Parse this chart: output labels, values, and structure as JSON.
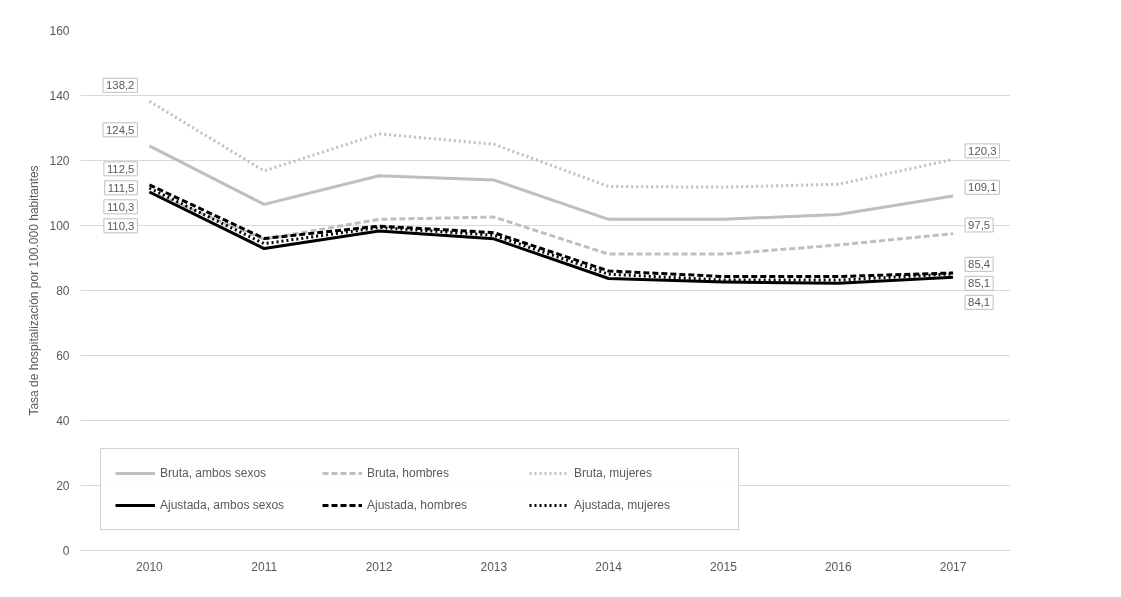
{
  "chart_data": {
    "type": "line",
    "ylabel": "Tasa de hospitalización por 100.000 habitantes",
    "categories": [
      "2010",
      "2011",
      "2012",
      "2013",
      "2014",
      "2015",
      "2016",
      "2017"
    ],
    "ylim": [
      0,
      160
    ],
    "yticks": [
      0,
      20,
      40,
      60,
      80,
      100,
      120,
      140,
      160
    ],
    "grid": "y",
    "legend": "bottom left",
    "series": [
      {
        "name": "Bruta, ambos sexos",
        "color": "#bfbfbf",
        "line_style": "solid",
        "values": [
          124.5,
          106.5,
          115.3,
          114,
          101.9,
          101.9,
          103.4,
          109.1
        ],
        "value_labels": [
          "124,5",
          null,
          null,
          null,
          null,
          null,
          null,
          "109,1"
        ]
      },
      {
        "name": "Bruta, hombres",
        "color": "#bfbfbf",
        "line_style": "dashed",
        "values": [
          110.3,
          95.8,
          101.9,
          102.6,
          91.2,
          91.2,
          94,
          97.5
        ],
        "value_labels": [
          "110,3",
          null,
          null,
          null,
          null,
          null,
          null,
          "97,5"
        ]
      },
      {
        "name": "Bruta, mujeres",
        "color": "#bfbfbf",
        "line_style": "dotted",
        "values": [
          138.2,
          116.8,
          128.2,
          125,
          112,
          111.8,
          112.7,
          120.3
        ],
        "value_labels": [
          "138,2",
          null,
          null,
          null,
          null,
          null,
          null,
          "120,3"
        ]
      },
      {
        "name": "Ajustada, ambos sexos",
        "color": "#000000",
        "line_style": "solid",
        "values": [
          110.3,
          92.9,
          98.3,
          95.9,
          83.7,
          82.6,
          82.2,
          84.1
        ],
        "value_labels": [
          "110,3",
          null,
          null,
          null,
          null,
          null,
          null,
          "84,1"
        ]
      },
      {
        "name": "Ajustada, hombres",
        "color": "#000000",
        "line_style": "dashed",
        "values": [
          112.5,
          96,
          99.8,
          97.8,
          86,
          84.3,
          84.3,
          85.4
        ],
        "value_labels": [
          "112,5",
          null,
          null,
          null,
          null,
          null,
          null,
          "85,4"
        ]
      },
      {
        "name": "Ajustada, mujeres",
        "color": "#000000",
        "line_style": "dotted",
        "values": [
          111.5,
          94.4,
          99.4,
          97,
          85,
          83.2,
          83.2,
          85.1
        ],
        "value_labels": [
          "111,5",
          null,
          null,
          null,
          null,
          null,
          null,
          "85,1"
        ]
      }
    ]
  }
}
